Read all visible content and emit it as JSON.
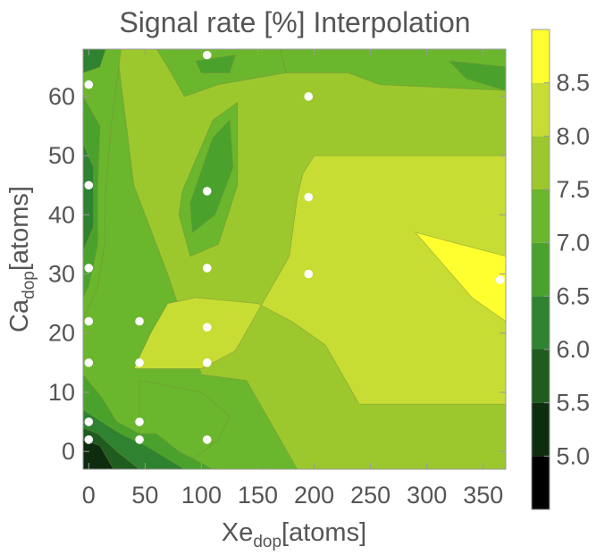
{
  "chart_data": {
    "type": "contour",
    "title": "Signal rate [%] Interpolation",
    "xlabel": {
      "main": "Xe",
      "sub": "dop",
      "unit": "[atoms]"
    },
    "ylabel": {
      "main": "Ca",
      "sub": "dop",
      "unit": "[atoms]"
    },
    "xlim": [
      -5,
      370
    ],
    "ylim": [
      -3,
      68
    ],
    "xticks": [
      "0",
      "50",
      "100",
      "150",
      "200",
      "250",
      "300",
      "350"
    ],
    "yticks": [
      "0",
      "10",
      "20",
      "30",
      "40",
      "50",
      "60"
    ],
    "colorbar": {
      "range": [
        4.5,
        9.0
      ],
      "ticks": [
        "5.0",
        "5.5",
        "6.0",
        "6.5",
        "7.0",
        "7.5",
        "8.0",
        "8.5"
      ],
      "levels": [
        4.5,
        5.0,
        5.5,
        6.0,
        6.5,
        7.0,
        7.5,
        8.0,
        8.5,
        9.0
      ],
      "colors": [
        "#000000",
        "#0e2d0e",
        "#1f5c1f",
        "#2f822f",
        "#4aa22d",
        "#6ab62c",
        "#9cc82e",
        "#c7dd33",
        "#ffff30"
      ]
    },
    "points": [
      {
        "x": 0,
        "y": 2
      },
      {
        "x": 0,
        "y": 5
      },
      {
        "x": 0,
        "y": 15
      },
      {
        "x": 0,
        "y": 22
      },
      {
        "x": 0,
        "y": 31
      },
      {
        "x": 0,
        "y": 45
      },
      {
        "x": 0,
        "y": 62
      },
      {
        "x": 45,
        "y": 2
      },
      {
        "x": 45,
        "y": 5
      },
      {
        "x": 45,
        "y": 15
      },
      {
        "x": 45,
        "y": 22
      },
      {
        "x": 105,
        "y": 2
      },
      {
        "x": 105,
        "y": 15
      },
      {
        "x": 105,
        "y": 21
      },
      {
        "x": 105,
        "y": 31
      },
      {
        "x": 105,
        "y": 44
      },
      {
        "x": 105,
        "y": 67
      },
      {
        "x": 195,
        "y": 30
      },
      {
        "x": 195,
        "y": 43
      },
      {
        "x": 195,
        "y": 60
      },
      {
        "x": 365,
        "y": 29
      }
    ],
    "regions": [
      {
        "level": 7.0,
        "poly": [
          [
            -5,
            -3
          ],
          [
            370,
            -3
          ],
          [
            370,
            68
          ],
          [
            -5,
            68
          ]
        ]
      },
      {
        "level": 7.5,
        "poly": [
          [
            32,
            68
          ],
          [
            170,
            68
          ],
          [
            175,
            64
          ],
          [
            230,
            64
          ],
          [
            258,
            62
          ],
          [
            370,
            61
          ],
          [
            370,
            -3
          ],
          [
            185,
            -3
          ],
          [
            140,
            12
          ],
          [
            100,
            13
          ],
          [
            70,
            30
          ],
          [
            40,
            45
          ],
          [
            25,
            68
          ]
        ]
      },
      {
        "level": 7.0,
        "poly": [
          [
            45,
            12
          ],
          [
            100,
            10
          ],
          [
            125,
            6
          ],
          [
            115,
            2
          ],
          [
            95,
            -1
          ],
          [
            45,
            -1
          ]
        ]
      },
      {
        "level": 6.5,
        "poly": [
          [
            -5,
            -3
          ],
          [
            110,
            -3
          ],
          [
            80,
            0
          ],
          [
            60,
            3
          ],
          [
            45,
            3
          ],
          [
            25,
            5
          ],
          [
            12,
            9
          ],
          [
            -5,
            13
          ]
        ]
      },
      {
        "level": 6.0,
        "poly": [
          [
            -5,
            -3
          ],
          [
            85,
            -3
          ],
          [
            50,
            1
          ],
          [
            28,
            3
          ],
          [
            -5,
            7
          ]
        ]
      },
      {
        "level": 5.5,
        "poly": [
          [
            -5,
            -3
          ],
          [
            45,
            -3
          ],
          [
            25,
            0
          ],
          [
            8,
            3
          ],
          [
            -5,
            4
          ]
        ]
      },
      {
        "level": 5.0,
        "poly": [
          [
            -5,
            -3
          ],
          [
            22,
            -3
          ],
          [
            10,
            1
          ],
          [
            -5,
            2
          ]
        ]
      },
      {
        "level": 7.0,
        "poly": [
          [
            -5,
            70
          ],
          [
            30,
            70
          ],
          [
            20,
            55
          ],
          [
            15,
            44
          ],
          [
            14,
            35
          ],
          [
            8,
            28
          ],
          [
            -5,
            22
          ]
        ]
      },
      {
        "level": 6.5,
        "poly": [
          [
            -5,
            60
          ],
          [
            10,
            55
          ],
          [
            8,
            45
          ],
          [
            8,
            35
          ],
          [
            0,
            28
          ],
          [
            -5,
            26
          ]
        ]
      },
      {
        "level": 6.0,
        "poly": [
          [
            -5,
            52
          ],
          [
            4,
            48
          ],
          [
            4,
            38
          ],
          [
            -5,
            34
          ]
        ]
      },
      {
        "level": 7.0,
        "poly": [
          [
            60,
            68
          ],
          [
            170,
            68
          ],
          [
            175,
            64
          ],
          [
            115,
            62
          ],
          [
            85,
            60
          ],
          [
            70,
            65
          ]
        ]
      },
      {
        "level": 6.5,
        "poly": [
          [
            95,
            66
          ],
          [
            130,
            67
          ],
          [
            125,
            64
          ],
          [
            100,
            64
          ]
        ]
      },
      {
        "level": 6.0,
        "poly": [
          [
            -5,
            68
          ],
          [
            15,
            68
          ],
          [
            10,
            65
          ],
          [
            -5,
            64
          ]
        ]
      },
      {
        "level": 7.0,
        "poly": [
          [
            83,
            44
          ],
          [
            110,
            56
          ],
          [
            132,
            59
          ],
          [
            132,
            45
          ],
          [
            115,
            35
          ],
          [
            90,
            33
          ],
          [
            80,
            40
          ]
        ]
      },
      {
        "level": 6.5,
        "poly": [
          [
            90,
            42
          ],
          [
            110,
            53
          ],
          [
            125,
            56
          ],
          [
            128,
            48
          ],
          [
            112,
            40
          ],
          [
            92,
            37
          ]
        ]
      },
      {
        "level": 8.0,
        "poly": [
          [
            40,
            14
          ],
          [
            100,
            14
          ],
          [
            130,
            17
          ],
          [
            160,
            27
          ],
          [
            178,
            33
          ],
          [
            185,
            43
          ],
          [
            190,
            47
          ],
          [
            200,
            50
          ],
          [
            370,
            50
          ],
          [
            370,
            8
          ],
          [
            240,
            8
          ],
          [
            210,
            18
          ],
          [
            180,
            22
          ],
          [
            150,
            25
          ],
          [
            95,
            26
          ],
          [
            70,
            25
          ],
          [
            55,
            20
          ]
        ]
      },
      {
        "level": 8.5,
        "poly": [
          [
            290,
            37
          ],
          [
            370,
            33
          ],
          [
            370,
            22
          ],
          [
            340,
            26
          ]
        ]
      },
      {
        "level": 6.5,
        "poly": [
          [
            320,
            66
          ],
          [
            370,
            65
          ],
          [
            370,
            61
          ],
          [
            335,
            63
          ]
        ]
      }
    ]
  }
}
